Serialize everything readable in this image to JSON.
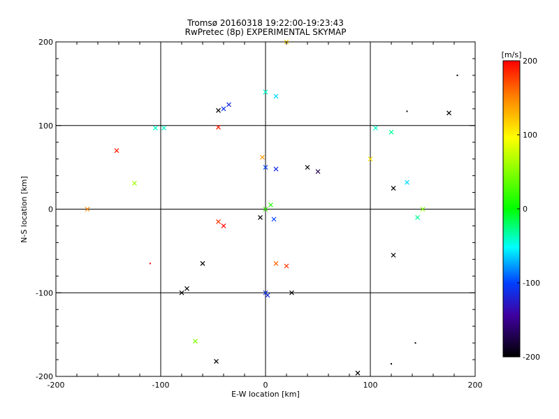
{
  "chart_data": {
    "type": "scatter",
    "title": "Tromsø 20160318 19:22:00-19:23:43",
    "subtitle": "RwPretec (8p) EXPERIMENTAL SKYMAP",
    "xlabel": "E-W location [km]",
    "ylabel": "N-S location [km]",
    "xlim": [
      -200,
      200
    ],
    "ylim": [
      -200,
      200
    ],
    "x_ticks": [
      "-200",
      "-100",
      "0",
      "100",
      "200"
    ],
    "y_ticks": [
      "-200",
      "-100",
      "0",
      "100",
      "200"
    ],
    "grid": true,
    "colorbar": {
      "label": "[m/s]",
      "range": [
        -200,
        200
      ],
      "ticks": [
        "200",
        "100",
        "0",
        "-100",
        "-200"
      ],
      "colormap": "rainbow (black-purple-blue-cyan-green-yellow-orange-red)"
    },
    "markers": [
      "x (large)",
      "dot (small)"
    ],
    "points": [
      {
        "x": 0,
        "y": 0,
        "v": 20,
        "m": "x"
      },
      {
        "x": 5,
        "y": 5,
        "v": 10,
        "m": "x"
      },
      {
        "x": -5,
        "y": -10,
        "v": -200,
        "m": "x"
      },
      {
        "x": 8,
        "y": -12,
        "v": -100,
        "m": "x"
      },
      {
        "x": 0,
        "y": 50,
        "v": -100,
        "m": "x"
      },
      {
        "x": 10,
        "y": 48,
        "v": -120,
        "m": "x"
      },
      {
        "x": -3,
        "y": 62,
        "v": 140,
        "m": "x"
      },
      {
        "x": -40,
        "y": 120,
        "v": -110,
        "m": "x"
      },
      {
        "x": -35,
        "y": 125,
        "v": -120,
        "m": "x"
      },
      {
        "x": -45,
        "y": 118,
        "v": -200,
        "m": "x"
      },
      {
        "x": 0,
        "y": 140,
        "v": -40,
        "m": "x"
      },
      {
        "x": 10,
        "y": 135,
        "v": -60,
        "m": "x"
      },
      {
        "x": -45,
        "y": -15,
        "v": 180,
        "m": "x"
      },
      {
        "x": -40,
        "y": -20,
        "v": 200,
        "m": "x"
      },
      {
        "x": 10,
        "y": -65,
        "v": 160,
        "m": "x"
      },
      {
        "x": 20,
        "y": -68,
        "v": 180,
        "m": "x"
      },
      {
        "x": 0,
        "y": -100,
        "v": -110,
        "m": "x"
      },
      {
        "x": 2,
        "y": -103,
        "v": -120,
        "m": "x"
      },
      {
        "x": 25,
        "y": -100,
        "v": -200,
        "m": "x"
      },
      {
        "x": -75,
        "y": -95,
        "v": -200,
        "m": "x"
      },
      {
        "x": -80,
        "y": -100,
        "v": -200,
        "m": "x"
      },
      {
        "x": -60,
        "y": -65,
        "v": -200,
        "m": "x"
      },
      {
        "x": 40,
        "y": 50,
        "v": -200,
        "m": "x"
      },
      {
        "x": 50,
        "y": 45,
        "v": -180,
        "m": "x"
      },
      {
        "x": -142,
        "y": 70,
        "v": 190,
        "m": "x"
      },
      {
        "x": -170,
        "y": 0,
        "v": 150,
        "m": "x"
      },
      {
        "x": -125,
        "y": 31,
        "v": 60,
        "m": "x"
      },
      {
        "x": 175,
        "y": 115,
        "v": -200,
        "m": "x"
      },
      {
        "x": 145,
        "y": -10,
        "v": -30,
        "m": "x"
      },
      {
        "x": 150,
        "y": 0,
        "v": 50,
        "m": "x"
      },
      {
        "x": 122,
        "y": -55,
        "v": -200,
        "m": "x"
      },
      {
        "x": 122,
        "y": 25,
        "v": -200,
        "m": "x"
      },
      {
        "x": 100,
        "y": 60,
        "v": 110,
        "m": "x"
      },
      {
        "x": 135,
        "y": 32,
        "v": -60,
        "m": "x"
      },
      {
        "x": -67,
        "y": -158,
        "v": 50,
        "m": "x"
      },
      {
        "x": -47,
        "y": -182,
        "v": -200,
        "m": "x"
      },
      {
        "x": -105,
        "y": 97,
        "v": -40,
        "m": "x"
      },
      {
        "x": -97,
        "y": 97,
        "v": -40,
        "m": "x"
      },
      {
        "x": -45,
        "y": 98,
        "v": 190,
        "m": "x"
      },
      {
        "x": 120,
        "y": 92,
        "v": -30,
        "m": "x"
      },
      {
        "x": 105,
        "y": 97,
        "v": -40,
        "m": "x"
      },
      {
        "x": 88,
        "y": -196,
        "v": -200,
        "m": "x"
      },
      {
        "x": 20,
        "y": 200,
        "v": 120,
        "m": "x"
      },
      {
        "x": 183,
        "y": 160,
        "v": -200,
        "m": "."
      },
      {
        "x": 135,
        "y": 117,
        "v": -200,
        "m": "."
      },
      {
        "x": 143,
        "y": -160,
        "v": -200,
        "m": "."
      },
      {
        "x": -110,
        "y": -65,
        "v": 200,
        "m": "."
      },
      {
        "x": 120,
        "y": -185,
        "v": -200,
        "m": "."
      }
    ]
  }
}
